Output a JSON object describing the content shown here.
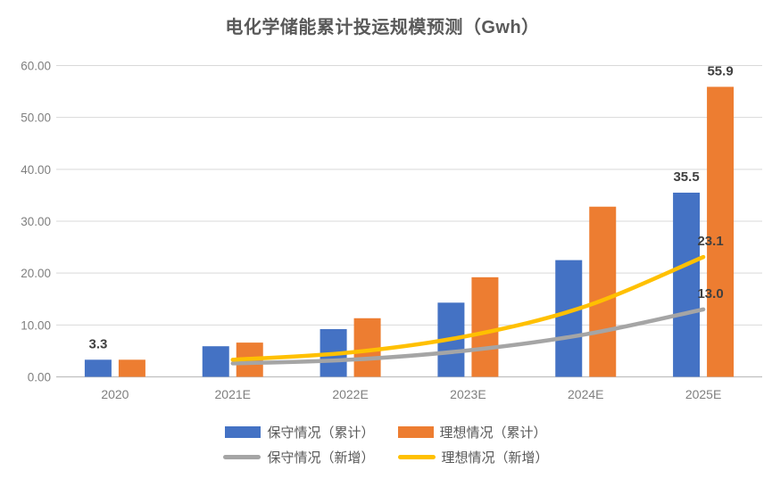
{
  "chart_data": {
    "type": "combo",
    "title": "电化学储能累计投运规模预测（Gwh）",
    "categories": [
      "2020",
      "2021E",
      "2022E",
      "2023E",
      "2024E",
      "2025E"
    ],
    "y_axis": {
      "min": 0,
      "max": 60,
      "tick_interval": 10,
      "tick_labels": [
        "0.00",
        "10.00",
        "20.00",
        "30.00",
        "40.00",
        "50.00",
        "60.00"
      ]
    },
    "series": [
      {
        "name": "保守情况（累计）",
        "type": "bar",
        "color": "#4472C4",
        "values": [
          3.3,
          5.9,
          9.2,
          14.3,
          22.5,
          35.5
        ]
      },
      {
        "name": "理想情况（累计）",
        "type": "bar",
        "color": "#ED7D31",
        "values": [
          3.3,
          6.6,
          11.3,
          19.2,
          32.8,
          55.9
        ]
      },
      {
        "name": "保守情况（新增）",
        "type": "line",
        "color": "#A5A5A5",
        "values": [
          null,
          2.6,
          3.3,
          5.1,
          8.2,
          13.0
        ]
      },
      {
        "name": "理想情况（新增）",
        "type": "line",
        "color": "#FFC000",
        "values": [
          null,
          3.3,
          4.7,
          7.9,
          13.6,
          23.1
        ]
      }
    ],
    "data_labels": [
      {
        "series": 0,
        "category": 0,
        "text": "3.3"
      },
      {
        "series": 0,
        "category": 5,
        "text": "35.5"
      },
      {
        "series": 1,
        "category": 5,
        "text": "55.9"
      },
      {
        "series": 3,
        "category": 5,
        "text": "23.1"
      },
      {
        "series": 2,
        "category": 5,
        "text": "13.0"
      }
    ],
    "grid": "horizontal",
    "legend_position": "bottom",
    "colors": {
      "background": "#FFFFFF",
      "gridline": "#D9D9D9",
      "axis_line": "#C0C0C0",
      "axis_text": "#7F7F7F",
      "title_text": "#595959",
      "label_text": "#404040",
      "legend_text": "#595959"
    }
  }
}
